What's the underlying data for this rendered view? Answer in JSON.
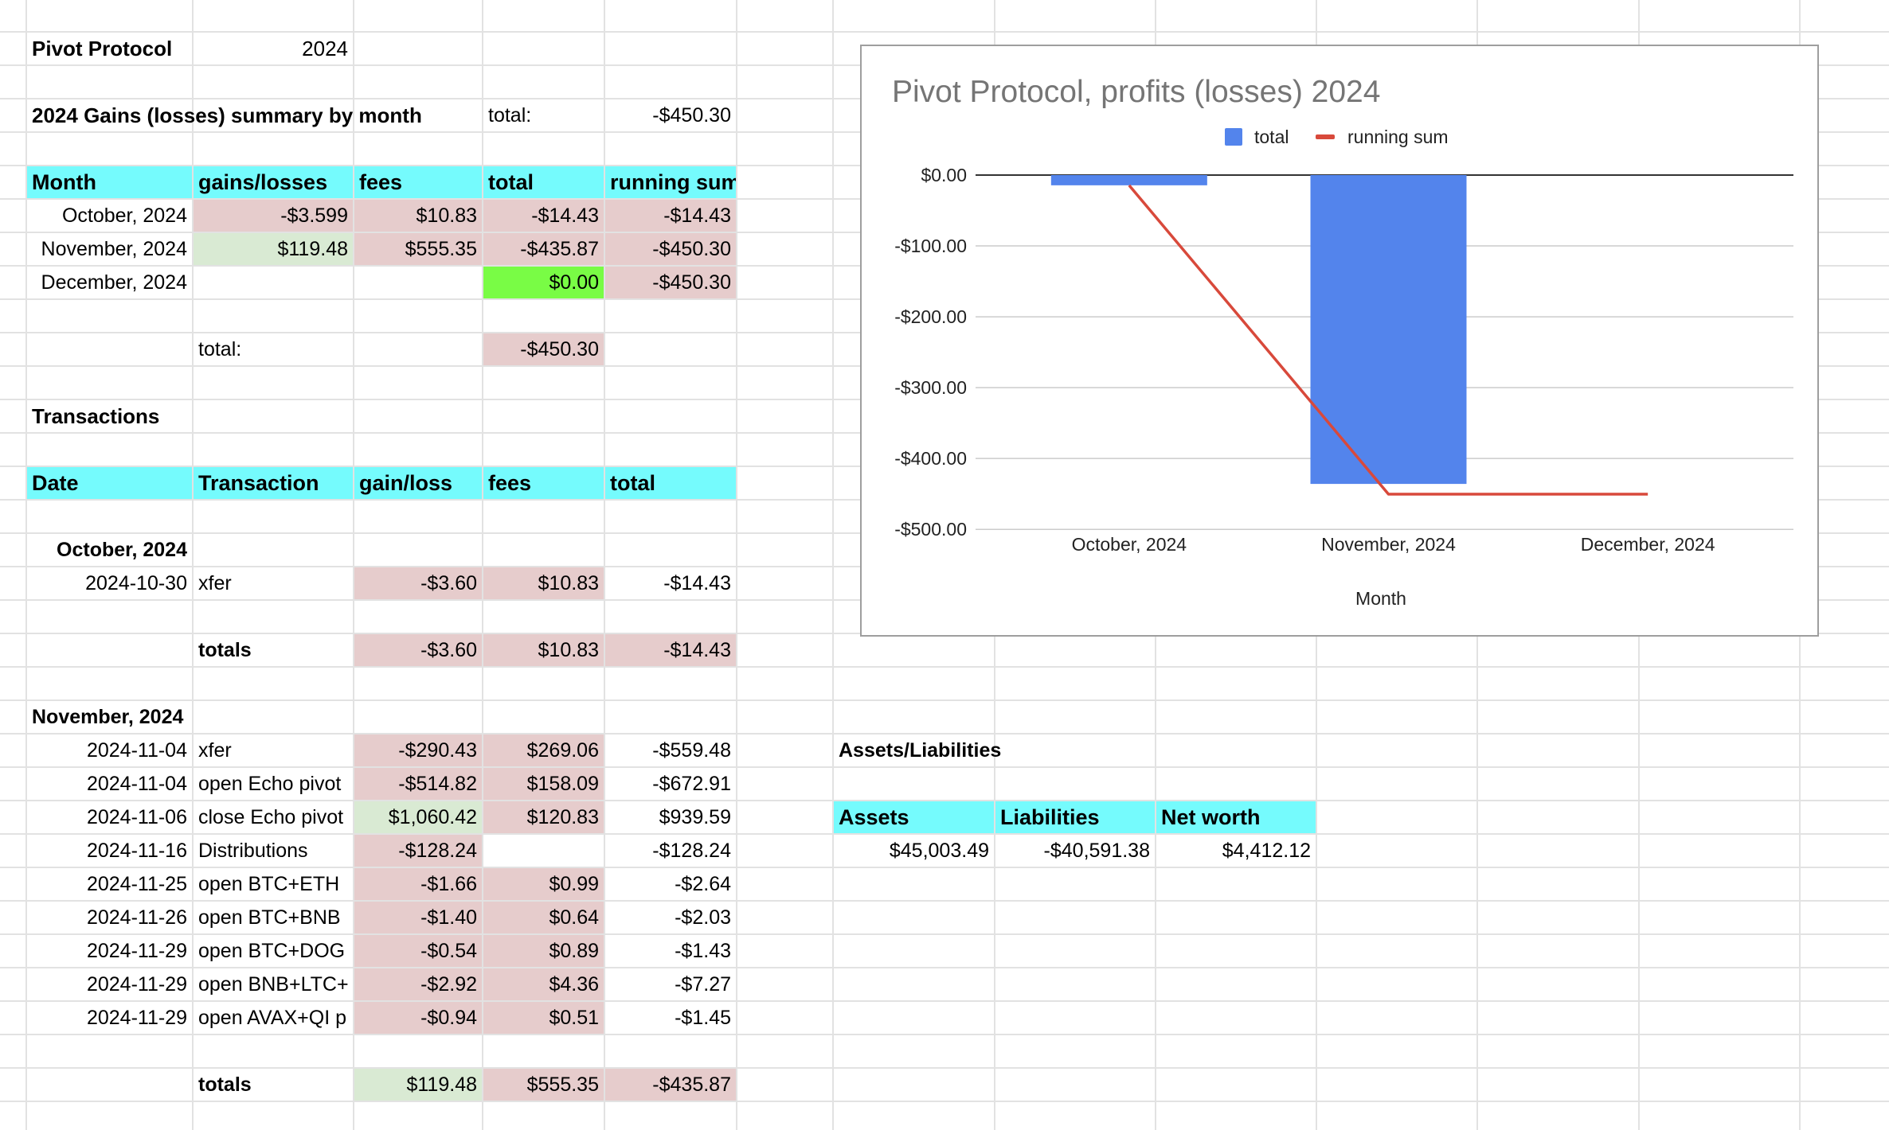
{
  "header": {
    "title": "Pivot Protocol",
    "year": "2024"
  },
  "summary": {
    "heading": "2024 Gains (losses) summary by month",
    "total_label": "total:",
    "total_value": "-$450.30",
    "columns": [
      "Month",
      "gains/losses",
      "fees",
      "total",
      "running sum"
    ],
    "rows": [
      [
        "October, 2024",
        "-$3.599",
        "$10.83",
        "-$14.43",
        "-$14.43"
      ],
      [
        "November, 2024",
        "$119.48",
        "$555.35",
        "-$435.87",
        "-$450.30"
      ],
      [
        "December, 2024",
        "",
        "",
        "$0.00",
        "-$450.30"
      ]
    ],
    "footer_label": "total:",
    "footer_value": "-$450.30"
  },
  "transactions": {
    "heading": "Transactions",
    "columns": [
      "Date",
      "Transaction",
      "gain/loss",
      "fees",
      "total"
    ],
    "october": {
      "label": "October, 2024",
      "rows": [
        [
          "2024-10-30",
          "xfer",
          "-$3.60",
          "$10.83",
          "-$14.43"
        ]
      ],
      "totals": [
        "totals",
        "-$3.60",
        "$10.83",
        "-$14.43"
      ]
    },
    "november": {
      "label": "November, 2024",
      "rows": [
        [
          "2024-11-04",
          "xfer",
          "-$290.43",
          "$269.06",
          "-$559.48"
        ],
        [
          "2024-11-04",
          "open Echo pivot",
          "-$514.82",
          "$158.09",
          "-$672.91"
        ],
        [
          "2024-11-06",
          "close Echo pivot",
          "$1,060.42",
          "$120.83",
          "$939.59"
        ],
        [
          "2024-11-16",
          "Distributions",
          "-$128.24",
          "",
          "-$128.24"
        ],
        [
          "2024-11-25",
          "open BTC+ETH",
          "-$1.66",
          "$0.99",
          "-$2.64"
        ],
        [
          "2024-11-26",
          "open BTC+BNB",
          "-$1.40",
          "$0.64",
          "-$2.03"
        ],
        [
          "2024-11-29",
          "open BTC+DOG",
          "-$0.54",
          "$0.89",
          "-$1.43"
        ],
        [
          "2024-11-29",
          "open BNB+LTC+",
          "-$2.92",
          "$4.36",
          "-$7.27"
        ],
        [
          "2024-11-29",
          "open AVAX+QI p",
          "-$0.94",
          "$0.51",
          "-$1.45"
        ]
      ],
      "totals": [
        "totals",
        "$119.48",
        "$555.35",
        "-$435.87"
      ]
    }
  },
  "assets": {
    "heading": "Assets/Liabilities",
    "columns": [
      "Assets",
      "Liabilities",
      "Net worth"
    ],
    "values": [
      "$45,003.49",
      "-$40,591.38",
      "$4,412.12"
    ]
  },
  "chart_data": {
    "type": "bar",
    "title": "Pivot Protocol, profits (losses) 2024",
    "xlabel": "Month",
    "ylabel": "",
    "categories": [
      "October, 2024",
      "November, 2024",
      "December, 2024"
    ],
    "series": [
      {
        "name": "total",
        "type": "bar",
        "color": "#5384ec",
        "values": [
          -14.43,
          -435.87,
          0.0
        ]
      },
      {
        "name": "running sum",
        "type": "line",
        "color": "#d8493b",
        "values": [
          -14.43,
          -450.3,
          -450.3
        ]
      }
    ],
    "ylim": [
      -500,
      0
    ],
    "yticks": [
      0,
      -100,
      -200,
      -300,
      -400,
      -500
    ],
    "ytick_labels": [
      "$0.00",
      "-$100.00",
      "-$200.00",
      "-$300.00",
      "-$400.00",
      "-$500.00"
    ],
    "legend": "top",
    "grid": true
  }
}
